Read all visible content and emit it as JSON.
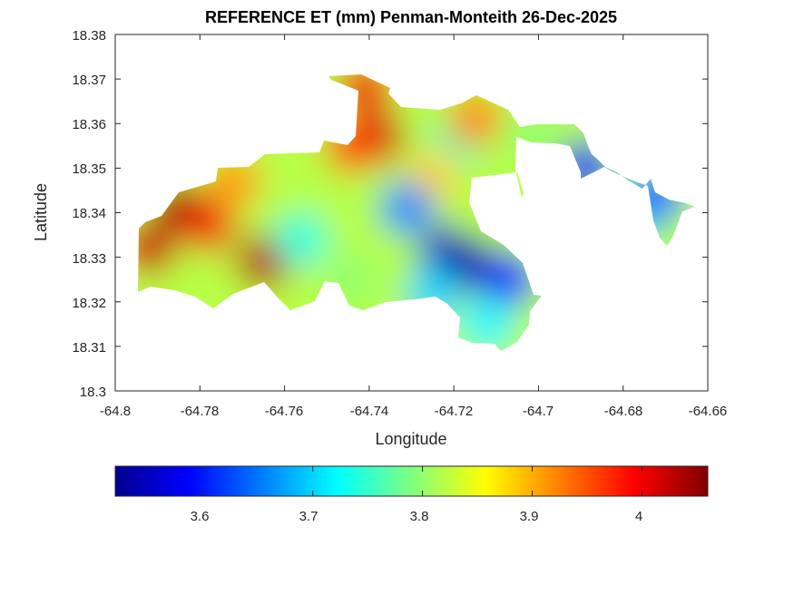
{
  "chart_data": {
    "type": "heatmap",
    "title": "REFERENCE ET (mm) Penman-Monteith 26-Dec-2025",
    "xlabel": "Longitude",
    "ylabel": "Latitude",
    "xlim": [
      -64.8,
      -64.66
    ],
    "ylim": [
      18.3,
      18.38
    ],
    "x_ticks": [
      "-64.8",
      "-64.78",
      "-64.76",
      "-64.74",
      "-64.72",
      "-64.7",
      "-64.68",
      "-64.66"
    ],
    "y_ticks": [
      "18.3",
      "18.31",
      "18.32",
      "18.33",
      "18.34",
      "18.35",
      "18.36",
      "18.37",
      "18.38"
    ],
    "grid": false,
    "colormap": "jet",
    "colorbar": {
      "position": "bottom",
      "range": [
        3.52,
        4.06
      ],
      "ticks": [
        "3.6",
        "3.7",
        "3.8",
        "3.9",
        "4"
      ]
    },
    "fields": [
      {
        "lon": -64.792,
        "lat": 18.332,
        "value": 4.02
      },
      {
        "lon": -64.785,
        "lat": 18.341,
        "value": 4.04
      },
      {
        "lon": -64.778,
        "lat": 18.337,
        "value": 4.0
      },
      {
        "lon": -64.765,
        "lat": 18.329,
        "value": 4.03
      },
      {
        "lon": -64.772,
        "lat": 18.347,
        "value": 3.91
      },
      {
        "lon": -64.748,
        "lat": 18.341,
        "value": 3.82
      },
      {
        "lon": -64.756,
        "lat": 18.334,
        "value": 3.74
      },
      {
        "lon": -64.738,
        "lat": 18.357,
        "value": 4.02
      },
      {
        "lon": -64.741,
        "lat": 18.368,
        "value": 4.0
      },
      {
        "lon": -64.744,
        "lat": 18.355,
        "value": 3.96
      },
      {
        "lon": -64.72,
        "lat": 18.355,
        "value": 3.76
      },
      {
        "lon": -64.725,
        "lat": 18.348,
        "value": 3.88
      },
      {
        "lon": -64.715,
        "lat": 18.361,
        "value": 3.92
      },
      {
        "lon": -64.731,
        "lat": 18.341,
        "value": 3.66
      },
      {
        "lon": -64.722,
        "lat": 18.331,
        "value": 3.56
      },
      {
        "lon": -64.716,
        "lat": 18.328,
        "value": 3.54
      },
      {
        "lon": -64.707,
        "lat": 18.325,
        "value": 3.6
      },
      {
        "lon": -64.725,
        "lat": 18.322,
        "value": 3.7
      },
      {
        "lon": -64.712,
        "lat": 18.315,
        "value": 3.72
      },
      {
        "lon": -64.744,
        "lat": 18.325,
        "value": 3.8
      },
      {
        "lon": -64.702,
        "lat": 18.358,
        "value": 3.8
      },
      {
        "lon": -64.689,
        "lat": 18.35,
        "value": 3.58
      },
      {
        "lon": -64.676,
        "lat": 18.34,
        "value": 3.7
      },
      {
        "lon": -64.672,
        "lat": 18.344,
        "value": 3.64
      }
    ]
  }
}
